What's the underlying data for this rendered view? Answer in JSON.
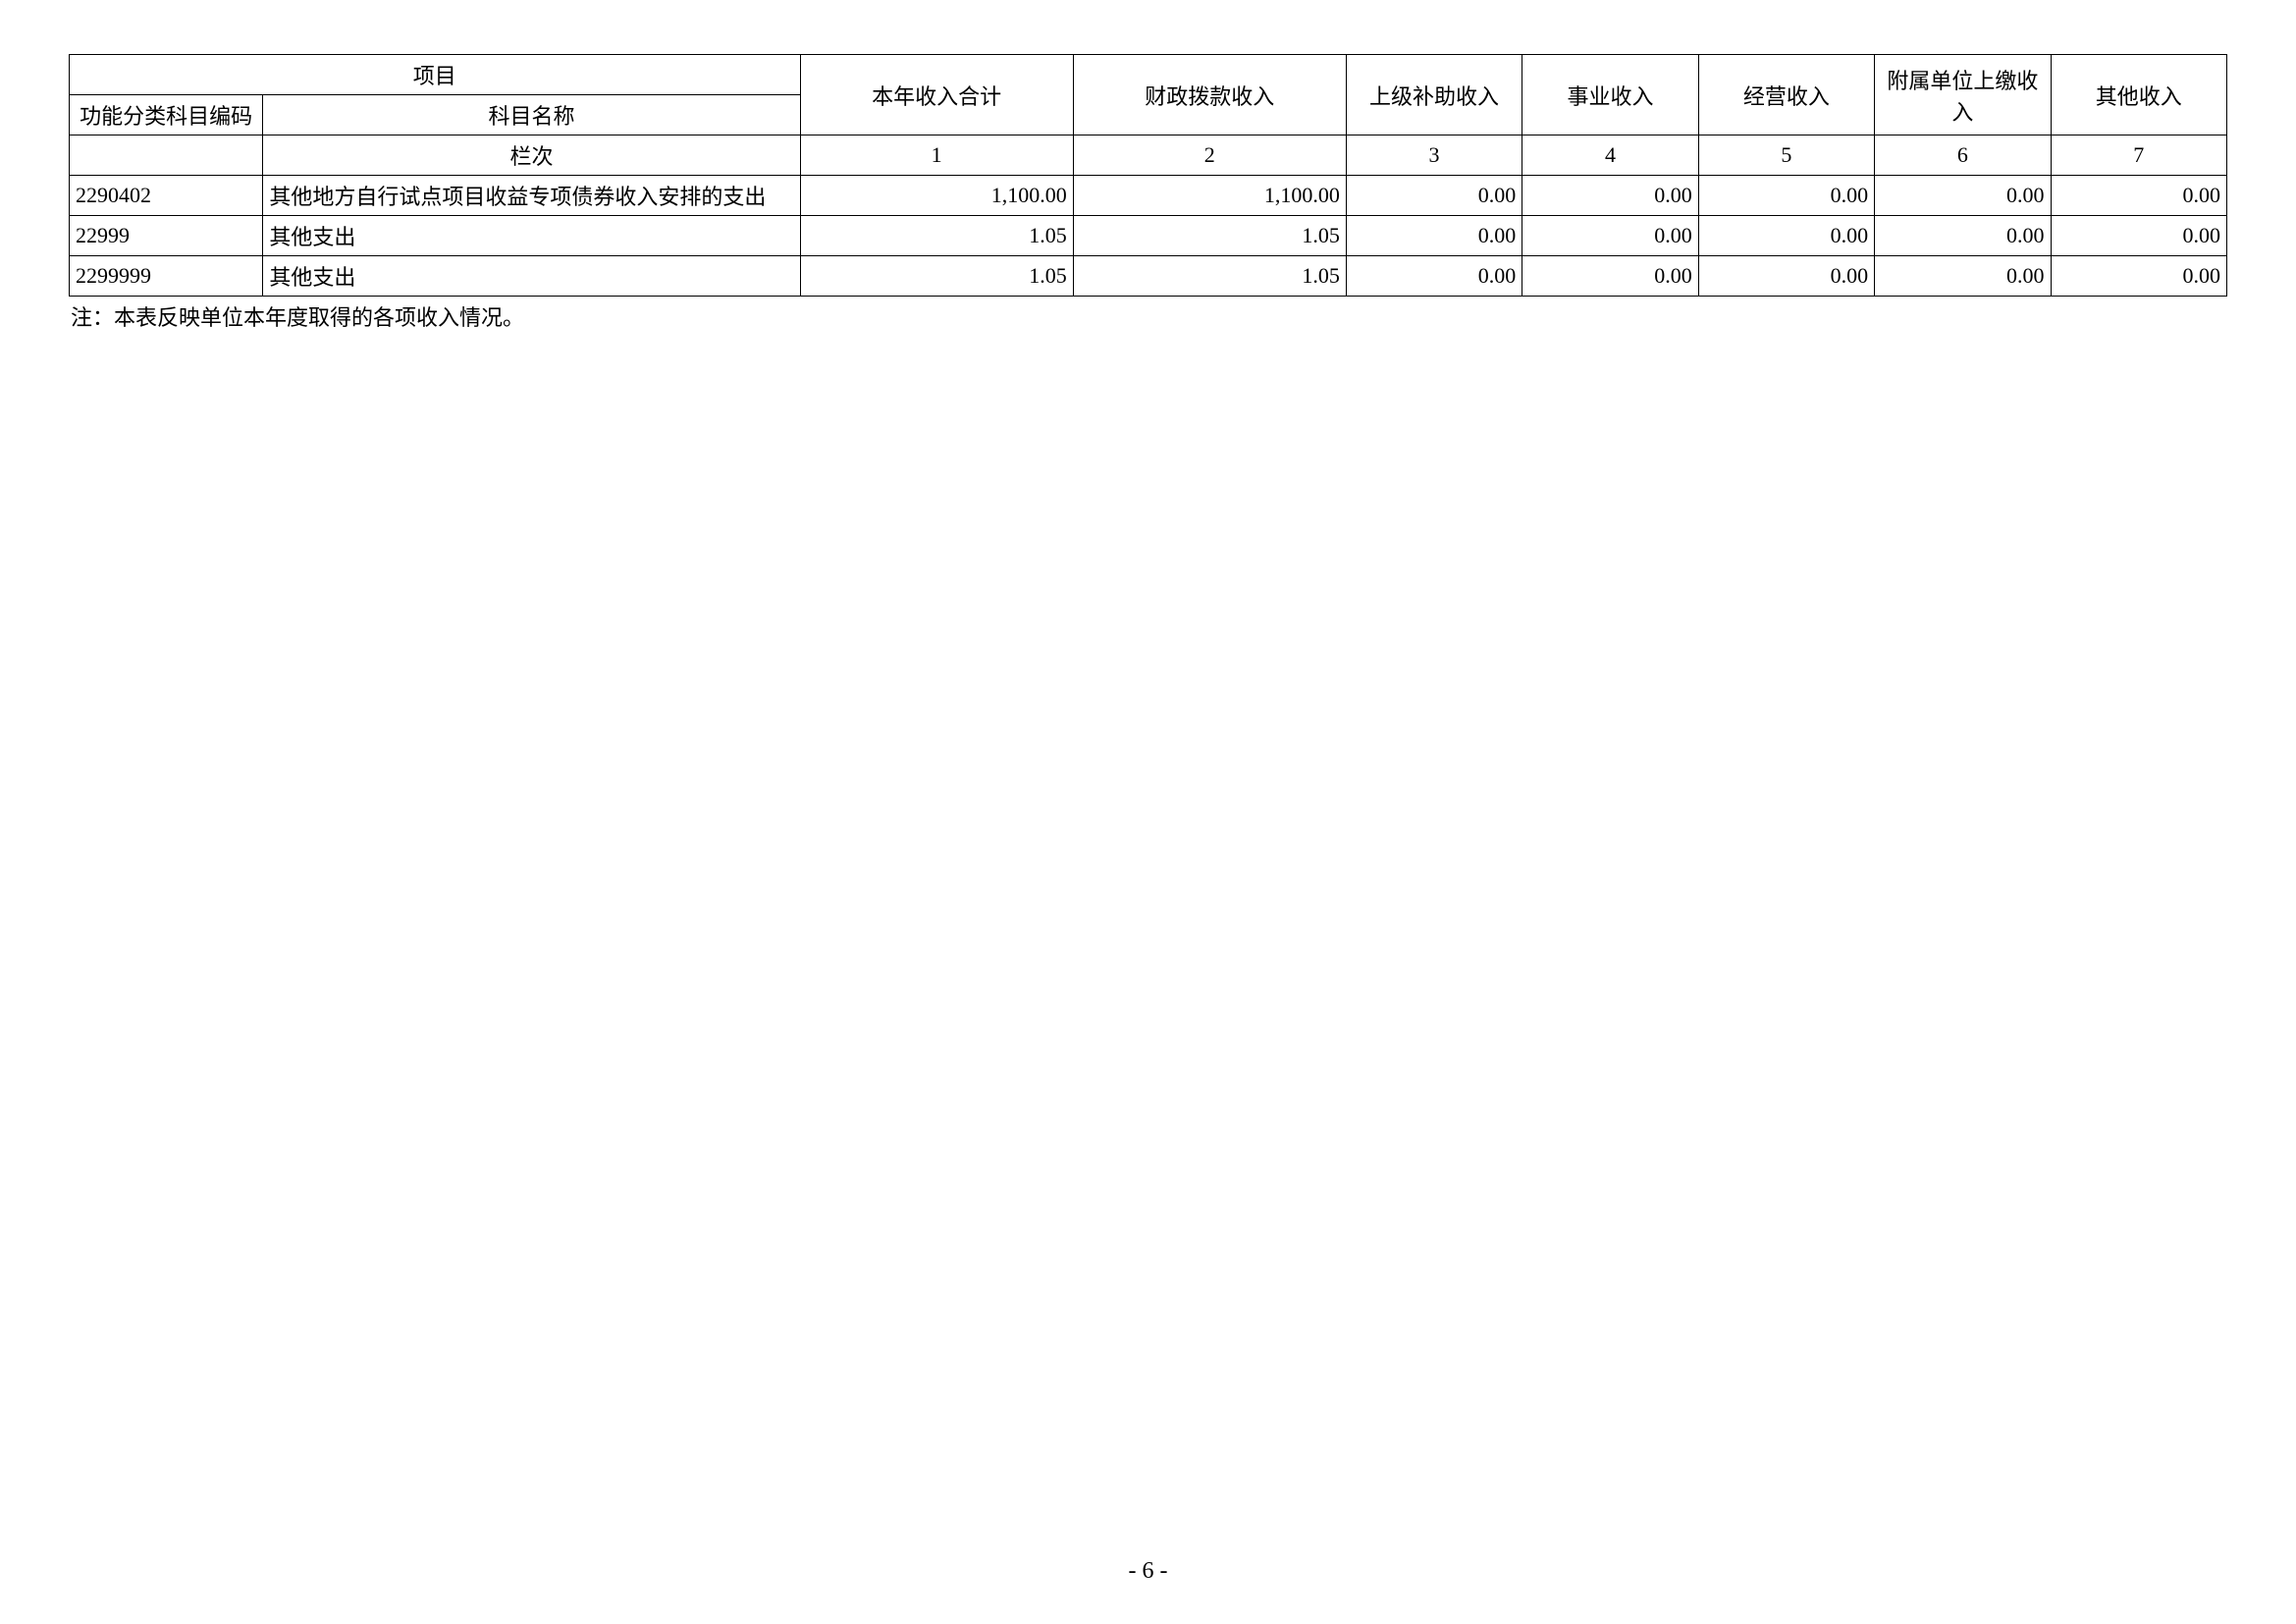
{
  "table": {
    "header": {
      "project": "项目",
      "code": "功能分类科目编码",
      "name": "科目名称",
      "col1": "本年收入合计",
      "col2": "财政拨款收入",
      "col3": "上级补助收入",
      "col4": "事业收入",
      "col5": "经营收入",
      "col6": "附属单位上缴收入",
      "col7": "其他收入"
    },
    "lanci": {
      "label": "栏次",
      "n1": "1",
      "n2": "2",
      "n3": "3",
      "n4": "4",
      "n5": "5",
      "n6": "6",
      "n7": "7"
    },
    "rows": [
      {
        "code": "2290402",
        "name": "其他地方自行试点项目收益专项债券收入安排的支出",
        "v1": "1,100.00",
        "v2": "1,100.00",
        "v3": "0.00",
        "v4": "0.00",
        "v5": "0.00",
        "v6": "0.00",
        "v7": "0.00"
      },
      {
        "code": "22999",
        "name": "其他支出",
        "v1": "1.05",
        "v2": "1.05",
        "v3": "0.00",
        "v4": "0.00",
        "v5": "0.00",
        "v6": "0.00",
        "v7": "0.00"
      },
      {
        "code": "2299999",
        "name": "其他支出",
        "v1": "1.05",
        "v2": "1.05",
        "v3": "0.00",
        "v4": "0.00",
        "v5": "0.00",
        "v6": "0.00",
        "v7": "0.00"
      }
    ]
  },
  "note": "注：本表反映单位本年度取得的各项收入情况。",
  "pageNumber": "- 6 -"
}
